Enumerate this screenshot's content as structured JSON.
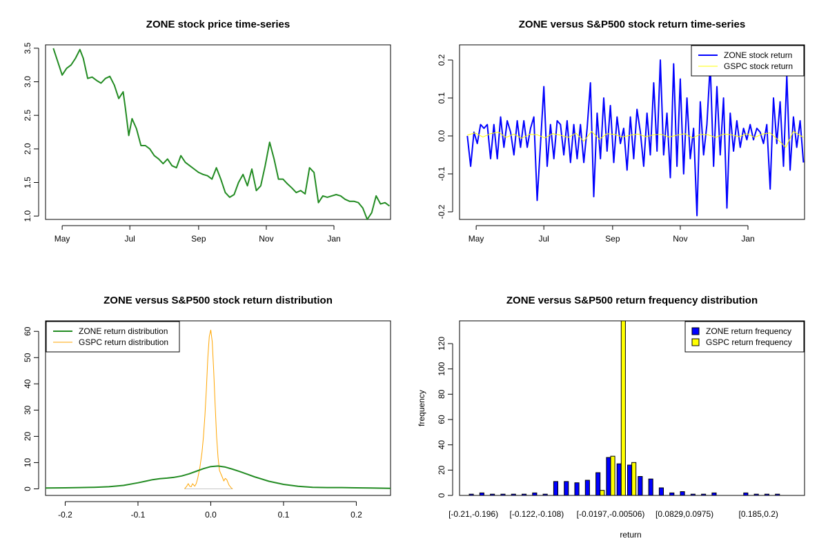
{
  "colors": {
    "zone_price": "#228B22",
    "zone_return_line": "#0000FF",
    "gspc_return_line": "#FFFF00",
    "zone_density": "#228B22",
    "gspc_density": "#FFA500",
    "zone_bar": "#0000FF",
    "gspc_bar": "#FFFF00"
  },
  "chart_data": [
    {
      "id": "price",
      "type": "line",
      "title": "ZONE stock price time-series",
      "xlabel": "",
      "ylabel": "",
      "xtick_labels": [
        "May",
        "Jul",
        "Sep",
        "Nov",
        "Jan"
      ],
      "xtick_days": [
        8,
        69,
        131,
        192,
        253
      ],
      "xlim": [
        -7,
        304
      ],
      "ylim": [
        0.95,
        3.55
      ],
      "yticks": [
        1.0,
        1.5,
        2.0,
        2.5,
        3.0,
        3.5
      ],
      "ytick_labels": [
        "1.0",
        "1.5",
        "2.0",
        "2.5",
        "3.0",
        "3.5"
      ],
      "series": [
        {
          "x": [
            "2017-04-24",
            "2017-04-28",
            "2017-05-02",
            "2017-05-06",
            "2017-05-10",
            "2017-05-14",
            "2017-05-18",
            "2017-05-21",
            "2017-05-25",
            "2017-05-29",
            "2017-06-02",
            "2017-06-06",
            "2017-06-10",
            "2017-06-14",
            "2017-06-18",
            "2017-06-22",
            "2017-06-26",
            "2017-06-28",
            "2017-07-01",
            "2017-07-04",
            "2017-07-08",
            "2017-07-12",
            "2017-07-16",
            "2017-07-20",
            "2017-07-24",
            "2017-07-28",
            "2017-08-01",
            "2017-08-05",
            "2017-08-09",
            "2017-08-13",
            "2017-08-17",
            "2017-08-21",
            "2017-08-25",
            "2017-08-29",
            "2017-09-02",
            "2017-09-06",
            "2017-09-10",
            "2017-09-14",
            "2017-09-18",
            "2017-09-22",
            "2017-09-26",
            "2017-09-30",
            "2017-10-04",
            "2017-10-08",
            "2017-10-12",
            "2017-10-16",
            "2017-10-20",
            "2017-10-24",
            "2017-10-28",
            "2017-11-01",
            "2017-11-05",
            "2017-11-09",
            "2017-11-13",
            "2017-11-17",
            "2017-11-21",
            "2017-11-25",
            "2017-11-29",
            "2017-12-03",
            "2017-12-07",
            "2017-12-11",
            "2017-12-15",
            "2017-12-19",
            "2017-12-23",
            "2017-12-27",
            "2017-12-31",
            "2018-01-04",
            "2018-01-08",
            "2018-01-12",
            "2018-01-16",
            "2018-01-20",
            "2018-01-24",
            "2018-01-28",
            "2018-02-01",
            "2018-02-05",
            "2018-02-09",
            "2018-02-13",
            "2018-02-17",
            "2018-02-21"
          ],
          "y": [
            3.5,
            3.3,
            3.1,
            3.2,
            3.25,
            3.35,
            3.48,
            3.35,
            3.05,
            3.07,
            3.02,
            2.98,
            3.05,
            3.08,
            2.95,
            2.75,
            2.85,
            2.6,
            2.2,
            2.45,
            2.3,
            2.05,
            2.05,
            2.0,
            1.9,
            1.85,
            1.78,
            1.85,
            1.75,
            1.72,
            1.9,
            1.8,
            1.75,
            1.7,
            1.65,
            1.62,
            1.6,
            1.55,
            1.72,
            1.55,
            1.35,
            1.28,
            1.32,
            1.5,
            1.62,
            1.45,
            1.7,
            1.38,
            1.45,
            1.75,
            2.1,
            1.85,
            1.55,
            1.55,
            1.48,
            1.42,
            1.35,
            1.38,
            1.33,
            1.72,
            1.65,
            1.2,
            1.3,
            1.28,
            1.3,
            1.32,
            1.3,
            1.25,
            1.22,
            1.22,
            1.2,
            1.12,
            0.95,
            1.05,
            1.3,
            1.18,
            1.2,
            1.15
          ]
        }
      ]
    },
    {
      "id": "returns",
      "type": "line",
      "title": "ZONE versus S&P500 stock return time-series",
      "xlabel": "",
      "ylabel": "",
      "xtick_labels": [
        "May",
        "Jul",
        "Sep",
        "Nov",
        "Jan"
      ],
      "xtick_days": [
        8,
        69,
        131,
        192,
        253
      ],
      "xlim": [
        -7,
        304
      ],
      "ylim": [
        -0.22,
        0.24
      ],
      "yticks": [
        -0.2,
        -0.1,
        0.0,
        0.1,
        0.2
      ],
      "ytick_labels": [
        "-0.2",
        "-0.1",
        "0.0",
        "0.1",
        "0.2"
      ],
      "legend": "top-right",
      "series": [
        {
          "name": "ZONE stock return",
          "x": [
            "2017-04-24",
            "2017-04-27",
            "2017-04-30",
            "2017-05-03",
            "2017-05-06",
            "2017-05-09",
            "2017-05-12",
            "2017-05-15",
            "2017-05-18",
            "2017-05-21",
            "2017-05-24",
            "2017-05-27",
            "2017-05-30",
            "2017-06-02",
            "2017-06-05",
            "2017-06-08",
            "2017-06-11",
            "2017-06-14",
            "2017-06-17",
            "2017-06-20",
            "2017-06-23",
            "2017-06-26",
            "2017-06-29",
            "2017-07-02",
            "2017-07-05",
            "2017-07-08",
            "2017-07-11",
            "2017-07-14",
            "2017-07-17",
            "2017-07-20",
            "2017-07-23",
            "2017-07-26",
            "2017-07-29",
            "2017-08-01",
            "2017-08-04",
            "2017-08-07",
            "2017-08-10",
            "2017-08-13",
            "2017-08-16",
            "2017-08-19",
            "2017-08-22",
            "2017-08-25",
            "2017-08-28",
            "2017-08-31",
            "2017-09-03",
            "2017-09-06",
            "2017-09-09",
            "2017-09-12",
            "2017-09-15",
            "2017-09-18",
            "2017-09-21",
            "2017-09-24",
            "2017-09-27",
            "2017-09-30",
            "2017-10-03",
            "2017-10-06",
            "2017-10-09",
            "2017-10-12",
            "2017-10-15",
            "2017-10-18",
            "2017-10-21",
            "2017-10-24",
            "2017-10-27",
            "2017-10-30",
            "2017-11-02",
            "2017-11-05",
            "2017-11-08",
            "2017-11-11",
            "2017-11-14",
            "2017-11-17",
            "2017-11-20",
            "2017-11-23",
            "2017-11-26",
            "2017-11-29",
            "2017-12-02",
            "2017-12-05",
            "2017-12-08",
            "2017-12-11",
            "2017-12-14",
            "2017-12-17",
            "2017-12-20",
            "2017-12-23",
            "2017-12-26",
            "2017-12-29",
            "2018-01-01",
            "2018-01-04",
            "2018-01-07",
            "2018-01-10",
            "2018-01-13",
            "2018-01-16",
            "2018-01-19",
            "2018-01-22",
            "2018-01-25",
            "2018-01-28",
            "2018-01-31",
            "2018-02-03",
            "2018-02-06",
            "2018-02-09",
            "2018-02-12",
            "2018-02-15",
            "2018-02-18",
            "2018-02-21"
          ],
          "y": [
            0.0,
            -0.08,
            0.01,
            -0.02,
            0.03,
            0.02,
            0.03,
            -0.06,
            0.03,
            -0.06,
            0.05,
            -0.03,
            0.04,
            0.01,
            -0.05,
            0.04,
            -0.03,
            0.04,
            -0.03,
            0.02,
            0.05,
            -0.17,
            -0.02,
            0.13,
            -0.08,
            0.03,
            -0.06,
            0.04,
            0.03,
            -0.05,
            0.04,
            -0.07,
            0.03,
            -0.06,
            0.03,
            -0.07,
            0.02,
            0.14,
            -0.16,
            0.06,
            -0.06,
            0.1,
            -0.04,
            0.08,
            -0.07,
            0.05,
            -0.02,
            0.02,
            -0.09,
            0.05,
            -0.06,
            0.07,
            0.01,
            -0.08,
            0.06,
            -0.05,
            0.14,
            -0.04,
            0.2,
            -0.05,
            0.06,
            -0.11,
            0.19,
            -0.08,
            0.15,
            -0.1,
            0.1,
            -0.06,
            0.02,
            -0.21,
            0.09,
            -0.05,
            0.03,
            0.19,
            -0.08,
            0.13,
            -0.05,
            0.1,
            -0.19,
            0.06,
            -0.04,
            0.04,
            -0.03,
            0.02,
            -0.01,
            0.03,
            -0.01,
            0.02,
            0.01,
            -0.02,
            0.03,
            -0.14,
            0.1,
            -0.02,
            0.09,
            -0.08,
            0.16,
            -0.09,
            0.05,
            -0.03,
            0.04,
            -0.07
          ]
        },
        {
          "name": "GSPC stock return",
          "x": [
            "2017-04-24",
            "2017-05-01",
            "2017-05-08",
            "2017-05-15",
            "2017-05-22",
            "2017-05-29",
            "2017-06-05",
            "2017-06-12",
            "2017-06-19",
            "2017-06-26",
            "2017-07-03",
            "2017-07-10",
            "2017-07-17",
            "2017-07-24",
            "2017-07-31",
            "2017-08-07",
            "2017-08-14",
            "2017-08-21",
            "2017-08-28",
            "2017-09-04",
            "2017-09-11",
            "2017-09-18",
            "2017-09-25",
            "2017-10-02",
            "2017-10-09",
            "2017-10-16",
            "2017-10-23",
            "2017-10-30",
            "2017-11-06",
            "2017-11-13",
            "2017-11-20",
            "2017-11-27",
            "2017-12-04",
            "2017-12-11",
            "2017-12-18",
            "2017-12-25",
            "2018-01-01",
            "2018-01-08",
            "2018-01-15",
            "2018-01-22",
            "2018-01-29",
            "2018-02-05",
            "2018-02-12",
            "2018-02-21"
          ],
          "y": [
            0.002,
            0.008,
            -0.003,
            0.006,
            0.01,
            -0.004,
            0.005,
            -0.006,
            0.004,
            0.003,
            -0.005,
            0.006,
            0.002,
            -0.004,
            0.007,
            -0.014,
            0.012,
            -0.009,
            0.006,
            0.004,
            -0.003,
            0.002,
            0.005,
            -0.002,
            0.003,
            0.004,
            -0.003,
            0.002,
            0.006,
            -0.005,
            0.004,
            0.003,
            -0.004,
            0.005,
            0.003,
            -0.002,
            0.006,
            -0.004,
            0.005,
            0.008,
            -0.01,
            -0.03,
            0.012,
            -0.004
          ]
        }
      ]
    },
    {
      "id": "density",
      "type": "line",
      "title": "ZONE versus S&P500 stock return distribution",
      "xlabel": "",
      "ylabel": "",
      "xlim": [
        -0.227,
        0.247
      ],
      "ylim": [
        -2.5,
        64
      ],
      "xticks": [
        -0.2,
        -0.1,
        0.0,
        0.1,
        0.2
      ],
      "xtick_labels": [
        "-0.2",
        "-0.1",
        "0.0",
        "0.1",
        "0.2"
      ],
      "yticks": [
        0,
        10,
        20,
        30,
        40,
        50,
        60
      ],
      "ytick_labels": [
        "0",
        "10",
        "20",
        "30",
        "40",
        "50",
        "60"
      ],
      "legend": "top-left",
      "series": [
        {
          "name": "ZONE return distribution",
          "x": [
            -0.227,
            -0.2,
            -0.18,
            -0.16,
            -0.14,
            -0.12,
            -0.1,
            -0.09,
            -0.08,
            -0.07,
            -0.06,
            -0.05,
            -0.04,
            -0.03,
            -0.02,
            -0.01,
            0.0,
            0.01,
            0.02,
            0.03,
            0.04,
            0.05,
            0.06,
            0.08,
            0.1,
            0.12,
            0.14,
            0.16,
            0.18,
            0.2,
            0.22,
            0.247
          ],
          "y": [
            0.3,
            0.4,
            0.5,
            0.6,
            0.8,
            1.3,
            2.3,
            2.9,
            3.5,
            3.9,
            4.1,
            4.4,
            4.9,
            5.7,
            6.7,
            7.7,
            8.5,
            8.7,
            8.3,
            7.5,
            6.6,
            5.6,
            4.6,
            2.9,
            1.7,
            1.0,
            0.6,
            0.5,
            0.5,
            0.4,
            0.3,
            0.2
          ]
        },
        {
          "name": "GSPC return distribution",
          "x": [
            -0.036,
            -0.033,
            -0.031,
            -0.029,
            -0.027,
            -0.025,
            -0.022,
            -0.02,
            -0.018,
            -0.015,
            -0.012,
            -0.01,
            -0.008,
            -0.006,
            -0.004,
            -0.002,
            0.0,
            0.002,
            0.004,
            0.006,
            0.008,
            0.01,
            0.012,
            0.015,
            0.018,
            0.02,
            0.022,
            0.025,
            0.028,
            0.03
          ],
          "y": [
            0.0,
            1.0,
            2.0,
            1.0,
            0.8,
            2.0,
            1.0,
            2.0,
            4.0,
            8.0,
            14.0,
            20.0,
            28.0,
            38.0,
            50.0,
            58.0,
            60.5,
            56.0,
            45.0,
            32.0,
            20.0,
            12.0,
            7.0,
            5.0,
            3.0,
            4.0,
            3.5,
            1.5,
            0.4,
            0.0
          ]
        }
      ]
    },
    {
      "id": "histogram",
      "type": "bar",
      "title": "ZONE versus S&P500 return frequency distribution",
      "xlabel": "return",
      "ylabel": "frequency",
      "ylim": [
        0,
        138
      ],
      "yticks": [
        0,
        20,
        40,
        60,
        80,
        100,
        120
      ],
      "ytick_labels": [
        "0",
        "20",
        "40",
        "60",
        "80",
        "100",
        "120"
      ],
      "legend": "top-right",
      "bin_count": 32,
      "xtick_labels": [
        "[-0.21,-0.196)",
        "[-0.122,-0.108)",
        "[-0.0197,-0.00506)",
        "[0.0829,0.0975)",
        "[0.185,0.2)"
      ],
      "xtick_bins": [
        0,
        6,
        13,
        20,
        27
      ],
      "series": [
        {
          "name": "ZONE return frequency",
          "values": [
            1,
            2,
            1,
            1,
            1,
            1,
            2,
            1,
            11,
            11,
            10,
            12,
            18,
            30,
            25,
            24,
            15,
            13,
            6,
            2,
            3,
            1,
            1,
            2,
            0,
            0,
            2,
            1,
            1,
            1,
            0,
            0
          ]
        },
        {
          "name": "GSPC return frequency",
          "values": [
            0,
            0,
            0,
            0,
            0,
            0,
            0,
            0,
            0,
            0,
            0,
            0,
            4,
            31,
            138,
            26,
            0,
            0,
            0,
            0,
            0,
            0,
            0,
            0,
            0,
            0,
            0,
            0,
            0,
            0,
            0,
            0
          ]
        }
      ]
    }
  ]
}
